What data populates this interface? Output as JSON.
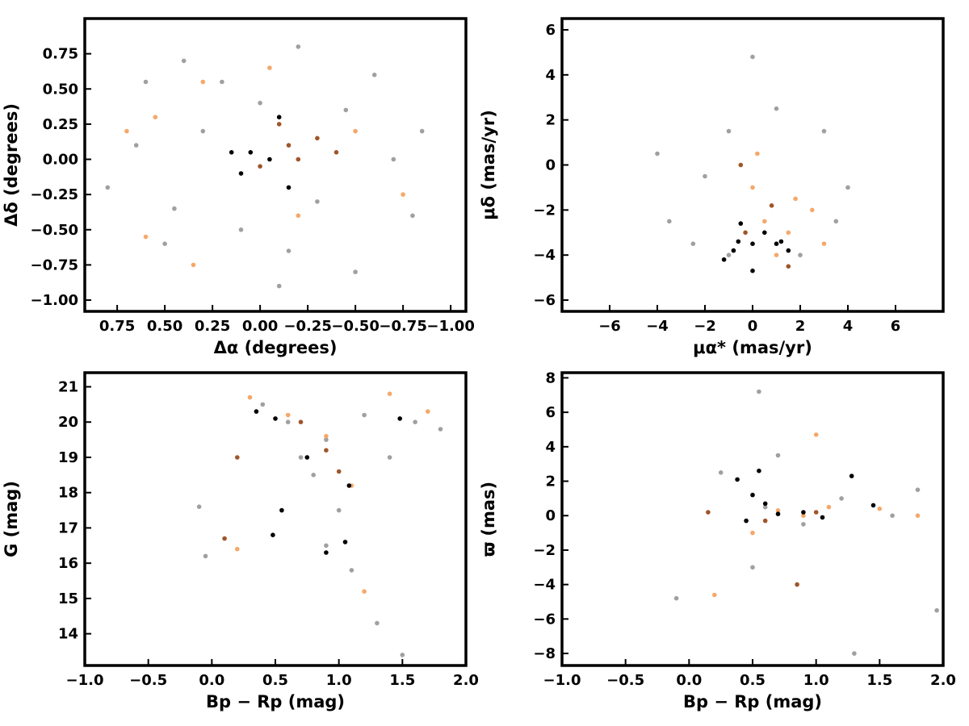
{
  "chart_data": [
    {
      "type": "scatter",
      "panel": "top-left",
      "xlabel": "Δα (degrees)",
      "ylabel": "Δδ (degrees)",
      "xlim": [
        0.92,
        -1.08
      ],
      "ylim": [
        -1.08,
        1.0
      ],
      "xticks": [
        0.75,
        0.5,
        0.25,
        0.0,
        -0.25,
        -0.5,
        -0.75,
        -1.0
      ],
      "xtick_labels": [
        "0.75",
        "0.50",
        "0.25",
        "0.00",
        "−0.25",
        "−0.50",
        "−0.75",
        "−1.00"
      ],
      "yticks": [
        -1.0,
        -0.75,
        -0.5,
        -0.25,
        0.0,
        0.25,
        0.5,
        0.75
      ],
      "ytick_labels": [
        "−1.00",
        "−0.75",
        "−0.50",
        "−0.25",
        "0.00",
        "0.25",
        "0.50",
        "0.75"
      ],
      "grid": false,
      "series": [
        {
          "color": "#a0a0a0",
          "points": [
            [
              0.6,
              0.55
            ],
            [
              0.4,
              0.7
            ],
            [
              -0.2,
              0.8
            ],
            [
              -0.6,
              0.6
            ],
            [
              -0.85,
              0.2
            ],
            [
              0.8,
              -0.2
            ],
            [
              0.5,
              -0.6
            ],
            [
              -0.1,
              -0.9
            ],
            [
              -0.5,
              -0.8
            ],
            [
              -0.8,
              -0.4
            ],
            [
              0.3,
              0.2
            ],
            [
              -0.3,
              -0.3
            ],
            [
              0.1,
              -0.5
            ],
            [
              -0.7,
              0.0
            ],
            [
              0.65,
              0.1
            ],
            [
              0.2,
              0.55
            ],
            [
              -0.45,
              0.35
            ],
            [
              0.45,
              -0.35
            ],
            [
              -0.15,
              -0.65
            ],
            [
              0.0,
              0.4
            ]
          ]
        },
        {
          "color": "#f5a86a",
          "points": [
            [
              0.55,
              0.3
            ],
            [
              0.3,
              0.55
            ],
            [
              0.6,
              -0.55
            ],
            [
              0.35,
              -0.75
            ],
            [
              -0.5,
              0.2
            ],
            [
              -0.75,
              -0.25
            ],
            [
              -0.2,
              -0.4
            ],
            [
              0.7,
              0.2
            ],
            [
              -0.05,
              0.65
            ]
          ]
        },
        {
          "color": "#a0552a",
          "points": [
            [
              -0.15,
              0.1
            ],
            [
              -0.3,
              0.15
            ],
            [
              -0.2,
              0.0
            ],
            [
              -0.4,
              0.05
            ],
            [
              0.0,
              -0.05
            ],
            [
              -0.1,
              0.25
            ]
          ]
        },
        {
          "color": "#000000",
          "points": [
            [
              0.1,
              -0.1
            ],
            [
              0.05,
              0.05
            ],
            [
              -0.05,
              0.0
            ],
            [
              -0.15,
              -0.2
            ],
            [
              0.15,
              0.05
            ],
            [
              -0.1,
              0.3
            ]
          ]
        }
      ]
    },
    {
      "type": "scatter",
      "panel": "top-right",
      "xlabel": "μα* (mas/yr)",
      "ylabel": "μδ (mas/yr)",
      "xlim": [
        -8.0,
        8.0
      ],
      "ylim": [
        -6.5,
        6.5
      ],
      "xticks": [
        -6,
        -4,
        -2,
        0,
        2,
        4,
        6
      ],
      "xtick_labels": [
        "−6",
        "−4",
        "−2",
        "0",
        "2",
        "4",
        "6"
      ],
      "yticks": [
        -6,
        -4,
        -2,
        0,
        2,
        4,
        6
      ],
      "ytick_labels": [
        "−6",
        "−4",
        "−2",
        "0",
        "2",
        "4",
        "6"
      ],
      "grid": false,
      "series": [
        {
          "color": "#a0a0a0",
          "points": [
            [
              -3.5,
              -2.5
            ],
            [
              -2.0,
              -0.5
            ],
            [
              -1.0,
              1.5
            ],
            [
              1.0,
              2.5
            ],
            [
              3.0,
              1.5
            ],
            [
              4.0,
              -1.0
            ],
            [
              2.0,
              -4.0
            ],
            [
              -1.0,
              -4.0
            ],
            [
              -4.0,
              0.5
            ],
            [
              0.0,
              4.8
            ],
            [
              3.5,
              -2.5
            ],
            [
              -2.5,
              -3.5
            ]
          ]
        },
        {
          "color": "#f5a86a",
          "points": [
            [
              0.5,
              -2.5
            ],
            [
              1.5,
              -3.0
            ],
            [
              2.5,
              -2.0
            ],
            [
              1.0,
              -4.0
            ],
            [
              0.0,
              -1.0
            ],
            [
              3.0,
              -3.5
            ],
            [
              1.8,
              -1.5
            ],
            [
              0.2,
              0.5
            ]
          ]
        },
        {
          "color": "#a0552a",
          "points": [
            [
              -0.5,
              0.0
            ],
            [
              0.8,
              -1.8
            ],
            [
              1.5,
              -4.5
            ],
            [
              -0.3,
              -3.0
            ]
          ]
        },
        {
          "color": "#000000",
          "points": [
            [
              -0.8,
              -3.8
            ],
            [
              0.0,
              -3.5
            ],
            [
              1.0,
              -3.5
            ],
            [
              -0.5,
              -2.6
            ],
            [
              0.5,
              -3.0
            ],
            [
              -1.2,
              -4.2
            ],
            [
              0.0,
              -4.7
            ],
            [
              1.5,
              -3.8
            ],
            [
              -0.6,
              -3.4
            ],
            [
              1.2,
              -3.4
            ]
          ]
        }
      ]
    },
    {
      "type": "scatter",
      "panel": "bottom-left",
      "xlabel": "Bp − Rp (mag)",
      "ylabel": "G (mag)",
      "xlim": [
        -1.0,
        2.0
      ],
      "ylim": [
        13.1,
        21.4
      ],
      "xticks": [
        -1.0,
        -0.5,
        0.0,
        0.5,
        1.0,
        1.5,
        2.0
      ],
      "xtick_labels": [
        "−1.0",
        "−0.5",
        "0.0",
        "0.5",
        "1.0",
        "1.5",
        "2.0"
      ],
      "yticks": [
        14,
        15,
        16,
        17,
        18,
        19,
        20,
        21
      ],
      "ytick_labels": [
        "14",
        "15",
        "16",
        "17",
        "18",
        "19",
        "20",
        "21"
      ],
      "grid": false,
      "series": [
        {
          "color": "#a0a0a0",
          "points": [
            [
              0.6,
              20.0
            ],
            [
              0.9,
              19.5
            ],
            [
              1.2,
              20.2
            ],
            [
              1.6,
              20.0
            ],
            [
              0.8,
              18.5
            ],
            [
              1.0,
              17.5
            ],
            [
              0.7,
              19.0
            ],
            [
              1.4,
              19.0
            ],
            [
              1.8,
              19.8
            ],
            [
              0.9,
              16.5
            ],
            [
              1.1,
              15.8
            ],
            [
              -0.1,
              17.6
            ],
            [
              -0.05,
              16.2
            ],
            [
              1.3,
              14.3
            ],
            [
              1.5,
              13.4
            ],
            [
              0.4,
              20.5
            ]
          ]
        },
        {
          "color": "#f5a86a",
          "points": [
            [
              0.3,
              20.7
            ],
            [
              0.6,
              20.2
            ],
            [
              0.9,
              19.6
            ],
            [
              1.4,
              20.8
            ],
            [
              1.1,
              18.2
            ],
            [
              1.2,
              15.2
            ],
            [
              0.2,
              16.4
            ],
            [
              1.7,
              20.3
            ]
          ]
        },
        {
          "color": "#a0552a",
          "points": [
            [
              0.7,
              20.0
            ],
            [
              0.9,
              19.2
            ],
            [
              0.1,
              16.7
            ],
            [
              1.0,
              18.6
            ],
            [
              0.2,
              19.0
            ]
          ]
        },
        {
          "color": "#000000",
          "points": [
            [
              0.35,
              20.3
            ],
            [
              0.5,
              20.1
            ],
            [
              0.75,
              19.0
            ],
            [
              0.55,
              17.5
            ],
            [
              0.9,
              16.3
            ],
            [
              1.05,
              16.6
            ],
            [
              0.48,
              16.8
            ],
            [
              1.08,
              18.2
            ],
            [
              1.48,
              20.1
            ]
          ]
        }
      ]
    },
    {
      "type": "scatter",
      "panel": "bottom-right",
      "xlabel": "Bp − Rp (mag)",
      "ylabel": "ϖ (mas)",
      "xlim": [
        -1.0,
        2.0
      ],
      "ylim": [
        -8.7,
        8.3
      ],
      "xticks": [
        -1.0,
        -0.5,
        0.0,
        0.5,
        1.0,
        1.5,
        2.0
      ],
      "xtick_labels": [
        "−1.0",
        "−0.5",
        "0.0",
        "0.5",
        "1.0",
        "1.5",
        "2.0"
      ],
      "yticks": [
        -8,
        -6,
        -4,
        -2,
        0,
        2,
        4,
        6,
        8
      ],
      "ytick_labels": [
        "−8",
        "−6",
        "−4",
        "−2",
        "0",
        "2",
        "4",
        "6",
        "8"
      ],
      "grid": false,
      "series": [
        {
          "color": "#a0a0a0",
          "points": [
            [
              0.6,
              0.5
            ],
            [
              0.9,
              -0.5
            ],
            [
              1.2,
              1.0
            ],
            [
              1.6,
              0.0
            ],
            [
              0.7,
              3.5
            ],
            [
              0.5,
              -3.0
            ],
            [
              1.3,
              -8.0
            ],
            [
              0.55,
              7.2
            ],
            [
              1.95,
              -5.5
            ],
            [
              -0.1,
              -4.8
            ],
            [
              0.25,
              2.5
            ],
            [
              1.8,
              1.5
            ]
          ]
        },
        {
          "color": "#f5a86a",
          "points": [
            [
              0.7,
              0.3
            ],
            [
              0.9,
              0.0
            ],
            [
              1.1,
              0.5
            ],
            [
              0.5,
              -1.0
            ],
            [
              1.5,
              0.4
            ],
            [
              0.2,
              -4.6
            ],
            [
              1.0,
              4.7
            ],
            [
              1.8,
              0.0
            ]
          ]
        },
        {
          "color": "#a0552a",
          "points": [
            [
              0.6,
              -0.3
            ],
            [
              1.0,
              0.2
            ],
            [
              0.15,
              0.2
            ],
            [
              0.85,
              -4.0
            ]
          ]
        },
        {
          "color": "#000000",
          "points": [
            [
              0.38,
              2.1
            ],
            [
              0.55,
              2.6
            ],
            [
              1.28,
              2.3
            ],
            [
              0.7,
              0.1
            ],
            [
              0.5,
              1.2
            ],
            [
              0.9,
              0.2
            ],
            [
              0.45,
              -0.3
            ],
            [
              0.6,
              0.7
            ],
            [
              1.45,
              0.6
            ],
            [
              1.05,
              -0.1
            ]
          ]
        }
      ]
    }
  ]
}
